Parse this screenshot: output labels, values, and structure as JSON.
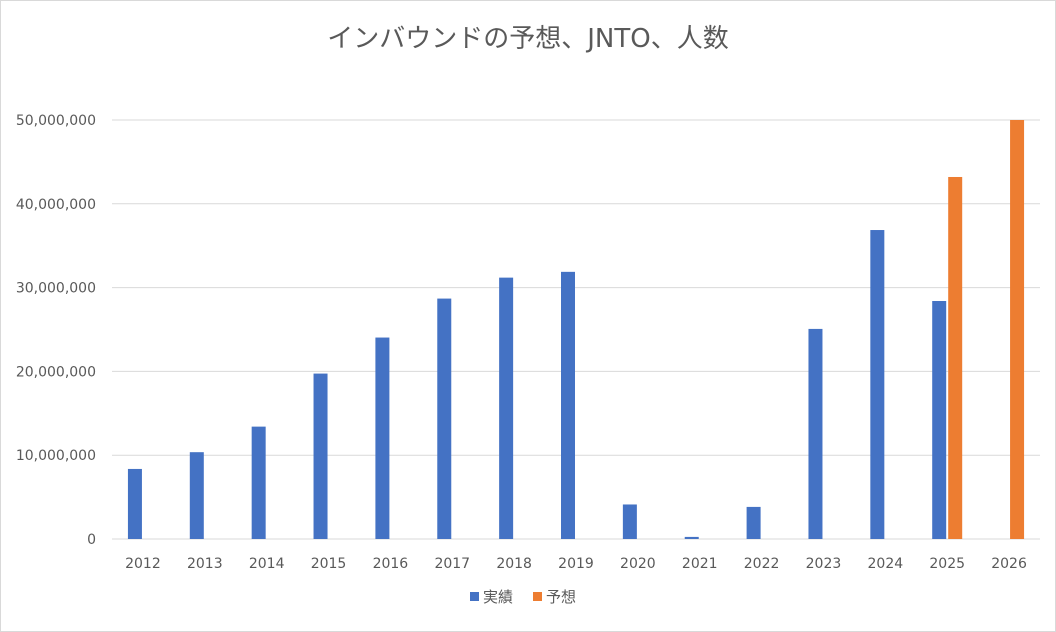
{
  "chart_data": {
    "type": "bar",
    "title": "インバウンドの予想、JNTO、人数",
    "xlabel": "",
    "ylabel": "",
    "categories": [
      "2012",
      "2013",
      "2014",
      "2015",
      "2016",
      "2017",
      "2018",
      "2019",
      "2020",
      "2021",
      "2022",
      "2023",
      "2024",
      "2025",
      "2026"
    ],
    "ylim": [
      0,
      50000000
    ],
    "yticks": [
      "0",
      "10,000,000",
      "20,000,000",
      "30,000,000",
      "40,000,000",
      "50,000,000"
    ],
    "ytick_values": [
      0,
      10000000,
      20000000,
      30000000,
      40000000,
      50000000
    ],
    "grid": true,
    "legend_position": "bottom",
    "series": [
      {
        "name": "実績",
        "color": "#4472c4",
        "values": [
          8360000,
          10360000,
          13410000,
          19740000,
          24040000,
          28690000,
          31190000,
          31880000,
          4120000,
          250000,
          3830000,
          25070000,
          36870000,
          28400000,
          null
        ]
      },
      {
        "name": "予想",
        "color": "#ed7d31",
        "values": [
          null,
          null,
          null,
          null,
          null,
          null,
          null,
          null,
          null,
          null,
          null,
          null,
          null,
          43200000,
          50000000
        ]
      }
    ]
  }
}
